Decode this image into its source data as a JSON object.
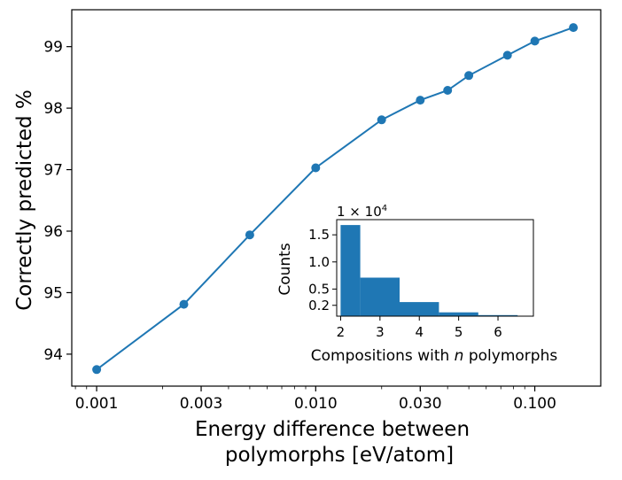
{
  "chart_data": [
    {
      "type": "line",
      "xscale": "log",
      "x": [
        0.001,
        0.0025,
        0.005,
        0.01,
        0.02,
        0.03,
        0.04,
        0.05,
        0.075,
        0.1,
        0.15
      ],
      "series": [
        {
          "values": [
            93.75,
            94.81,
            95.94,
            97.03,
            97.81,
            98.13,
            98.29,
            98.53,
            98.86,
            99.09,
            99.31
          ]
        }
      ],
      "xlim": [
        0.00077,
        0.2
      ],
      "ylim": [
        93.48,
        99.6
      ],
      "xticks": [
        0.001,
        0.003,
        0.01,
        0.03,
        0.1
      ],
      "xtick_labels": [
        "0.001",
        "0.003",
        "0.010",
        "0.030",
        "0.100"
      ],
      "yticks": [
        94,
        95,
        96,
        97,
        98,
        99
      ],
      "ytick_labels": [
        "94",
        "95",
        "96",
        "97",
        "98",
        "99"
      ],
      "xlabel_line1": "Energy difference between",
      "xlabel_line2": "polymorphs [eV/atom]",
      "ylabel": "Correctly predicted  %",
      "color": "#1f77b4",
      "grid": false
    },
    {
      "type": "bar",
      "bins": [
        [
          2,
          2.5
        ],
        [
          2.5,
          3.5
        ],
        [
          3.5,
          4.5
        ],
        [
          4.5,
          5.5
        ],
        [
          5.5,
          6.5
        ]
      ],
      "values": [
        1.68,
        0.71,
        0.26,
        0.07,
        0.02
      ],
      "xlim": [
        1.9,
        6.9
      ],
      "ylim": [
        0.0,
        1.78
      ],
      "xticks": [
        2,
        3,
        4,
        5,
        6
      ],
      "xtick_labels": [
        "2",
        "3",
        "4",
        "5",
        "6"
      ],
      "yticks": [
        0.2,
        0.5,
        1.0,
        1.5
      ],
      "ytick_labels": [
        "0.2",
        "0.5",
        "1.0",
        "1.5"
      ],
      "scale_label": "1 × 10",
      "scale_exponent": "4",
      "xlabel_pre": "Compositions with ",
      "xlabel_var": "n",
      "xlabel_post": " polymorphs",
      "ylabel": "Counts",
      "color": "#1f77b4"
    }
  ]
}
